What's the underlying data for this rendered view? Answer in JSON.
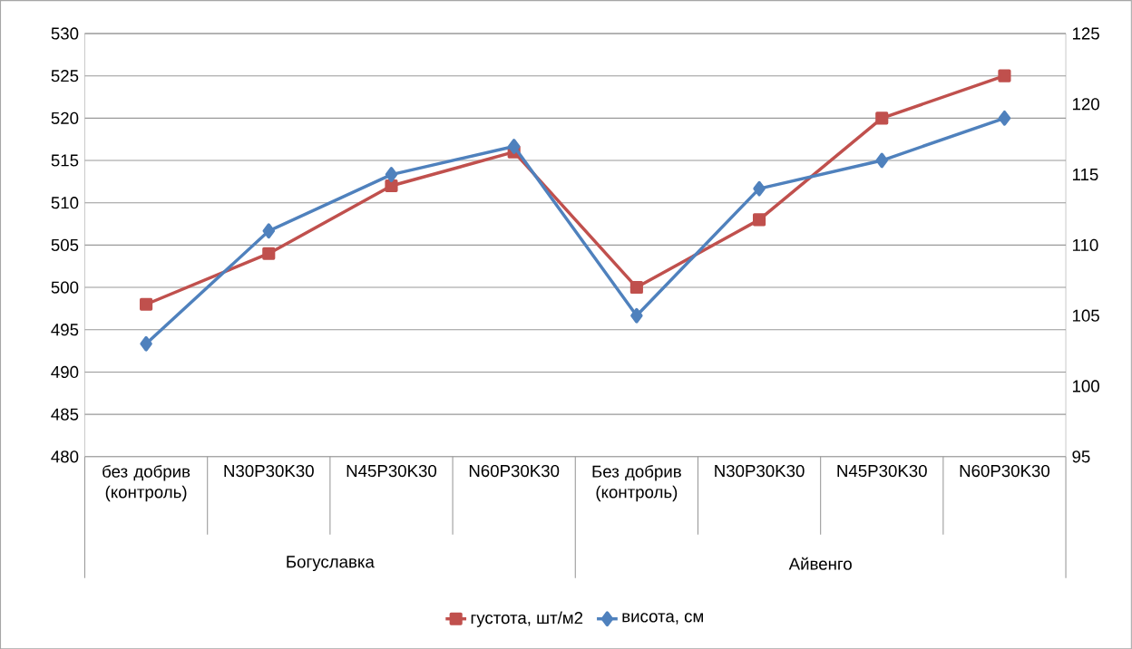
{
  "chart_data": {
    "type": "line",
    "categories": [
      "без добрив (контроль)",
      "N30P30K30",
      "N45P30K30",
      "N60P30K30",
      "Без добрив (контроль)",
      "N30P30K30",
      "N45P30K30",
      "N60P30K30"
    ],
    "annotations": [
      "Богуславка",
      "Айвенго"
    ],
    "series": [
      {
        "name": "густота, шт/м2",
        "color": "#c0504d",
        "marker": "square",
        "values": [
          498,
          504,
          512,
          516,
          500,
          508,
          520,
          525
        ]
      },
      {
        "name": "висота, см",
        "color": "#4f81bd",
        "marker": "diamond",
        "axis": "y2",
        "values": [
          103,
          111,
          115,
          117,
          105,
          114,
          116,
          119
        ]
      }
    ],
    "ylim": [
      480,
      530
    ],
    "yticks": [
      480,
      485,
      490,
      495,
      500,
      505,
      510,
      515,
      520,
      525,
      530
    ],
    "y2lim": [
      95,
      125
    ],
    "y2ticks": [
      95,
      100,
      105,
      110,
      115,
      120,
      125
    ],
    "grid": "y",
    "legend": "bottom",
    "line_style": "solid"
  }
}
